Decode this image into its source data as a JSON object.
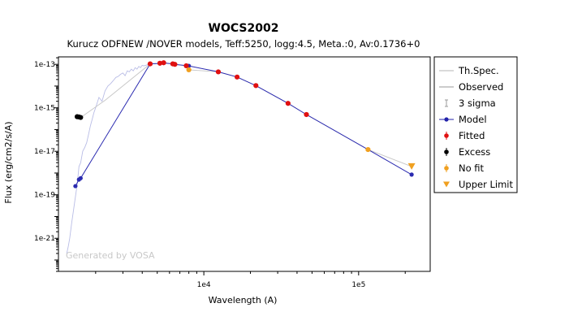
{
  "chart_data": {
    "type": "scatter",
    "title": "WOCS2002",
    "subtitle": "Kurucz ODFNEW /NOVER models, Teff:5250, logg:4.5, Meta.:0, Av:0.1736+0",
    "xlabel": "Wavelength (A)",
    "ylabel": "Flux (erg/cm2/s/A)",
    "x_scale": "log",
    "y_scale": "log",
    "xlim": [
      1150,
      290000
    ],
    "ylim": [
      3e-23,
      2.2e-13
    ],
    "x_ticks": [
      {
        "value": 10000,
        "label": "1e4"
      },
      {
        "value": 100000,
        "label": "1e5"
      }
    ],
    "y_ticks": [
      {
        "value": 1e-13,
        "label": "1e-13"
      },
      {
        "value": 1e-15,
        "label": "1e-15"
      },
      {
        "value": 1e-17,
        "label": "1e-17"
      },
      {
        "value": 1e-19,
        "label": "1e-19"
      },
      {
        "value": 1e-21,
        "label": "1e-21"
      }
    ],
    "watermark": "Generated by VOSA",
    "legend_placement": "right-outside",
    "legend": [
      {
        "label": "Th.Spec.",
        "marker": "line",
        "color": "#b4b4b4"
      },
      {
        "label": "Observed",
        "marker": "line",
        "color": "#9a9a9a"
      },
      {
        "label": "3 sigma",
        "marker": "errorbar",
        "color": "#9a9a9a"
      },
      {
        "label": "Model",
        "marker": "line-dot",
        "color": "#2222aa"
      },
      {
        "label": "Fitted",
        "marker": "dot-errorbar",
        "color": "#e01010"
      },
      {
        "label": "Excess",
        "marker": "dot-errorbar",
        "color": "#000000"
      },
      {
        "label": "No fit",
        "marker": "dot-errorbar",
        "color": "#f0a020"
      },
      {
        "label": "Upper Limit",
        "marker": "triangle-down",
        "color": "#f0a020"
      }
    ],
    "series": [
      {
        "name": "Th.Spec.",
        "style": "line",
        "color": "#b9bde6",
        "x": [
          1300,
          1330,
          1360,
          1400,
          1440,
          1480,
          1520,
          1560,
          1600,
          1650,
          1700,
          1750,
          1800,
          1850,
          1900,
          1950,
          2000,
          2100,
          2200,
          2300,
          2400,
          2500,
          2600,
          2700,
          2800,
          2900,
          3000,
          3100,
          3200,
          3300,
          3400,
          3500,
          3600,
          3700,
          3800,
          3900,
          4000,
          4100,
          4200,
          4400
        ],
        "y": [
          2e-22,
          4e-22,
          1e-21,
          5e-21,
          2e-20,
          8e-20,
          3e-19,
          2e-18,
          3e-18,
          1e-17,
          1.5e-17,
          2.5e-17,
          6e-17,
          1.5e-16,
          3e-16,
          6e-16,
          1e-15,
          3e-15,
          2e-15,
          6e-15,
          1e-14,
          1.3e-14,
          1.8e-14,
          2.5e-14,
          2.8e-14,
          3.5e-14,
          4e-14,
          3e-14,
          5e-14,
          4.5e-14,
          6e-14,
          5e-14,
          7e-14,
          6e-14,
          8e-14,
          7e-14,
          9e-14,
          8.5e-14,
          9e-14,
          1e-13
        ]
      },
      {
        "name": "Observed",
        "style": "line",
        "color": "#c6c6c6",
        "x": [
          1520,
          1600,
          2300,
          4500,
          5200,
          5500,
          6300,
          6500,
          7700,
          8000,
          12400,
          16400,
          21700,
          35000,
          46000,
          115000,
          220000
        ],
        "y": [
          3.9e-16,
          3.6e-16,
          2.2e-15,
          1.05e-13,
          1.12e-13,
          1.18e-13,
          1.05e-13,
          1e-13,
          8.6e-14,
          5.6e-14,
          4.5e-14,
          2.6e-14,
          1.05e-14,
          1.6e-15,
          4.9e-16,
          1.2e-17,
          2e-18
        ]
      },
      {
        "name": "Model",
        "style": "line-dot",
        "color": "#2b2bb0",
        "x": [
          1480,
          1560,
          1600,
          4500,
          5200,
          5500,
          6300,
          6500,
          7700,
          8000,
          12400,
          16400,
          21700,
          35000,
          46000,
          115000,
          220000
        ],
        "y": [
          2.5e-19,
          5e-19,
          5.8e-19,
          1.05e-13,
          1.1e-13,
          1.15e-13,
          1.05e-13,
          1e-13,
          8.7e-14,
          8.5e-14,
          4.5e-14,
          2.6e-14,
          1.05e-14,
          1.6e-15,
          4.9e-16,
          1.2e-17,
          8.5e-19
        ]
      },
      {
        "name": "Fitted",
        "style": "dot",
        "color": "#e01010",
        "x": [
          4500,
          5200,
          5500,
          6300,
          6500,
          7700,
          12400,
          16400,
          21700,
          35000,
          46000
        ],
        "y": [
          1.05e-13,
          1.12e-13,
          1.18e-13,
          1.05e-13,
          1e-13,
          8.6e-14,
          4.5e-14,
          2.6e-14,
          1.05e-14,
          1.6e-15,
          4.9e-16
        ]
      },
      {
        "name": "Excess",
        "style": "dot",
        "color": "#000000",
        "x": [
          1520,
          1560,
          1600
        ],
        "y": [
          3.9e-16,
          3.8e-16,
          3.6e-16
        ]
      },
      {
        "name": "No fit",
        "style": "dot",
        "color": "#f0a020",
        "x": [
          8000,
          115000
        ],
        "y": [
          5.6e-14,
          1.2e-17
        ]
      },
      {
        "name": "Upper Limit",
        "style": "triangle-down",
        "color": "#f0a020",
        "x": [
          220000
        ],
        "y": [
          2e-18
        ]
      }
    ]
  }
}
